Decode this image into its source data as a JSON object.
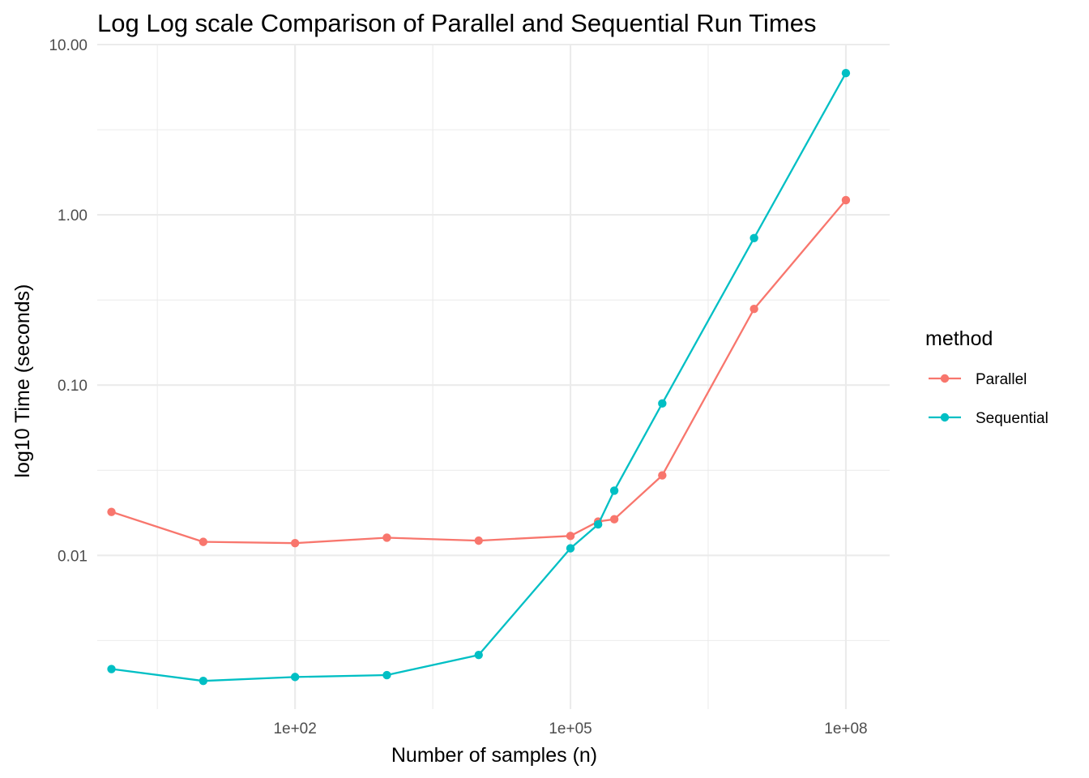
{
  "chart_data": {
    "type": "line",
    "title": "Log Log scale Comparison of Parallel and Sequential Run Times",
    "xlabel": "Number of samples (n)",
    "ylabel": "log10 Time (seconds)",
    "x_scale": "log10",
    "y_scale": "log10",
    "xlim": [
      0.7,
      300000000
    ],
    "ylim": [
      0.00125,
      10
    ],
    "x_ticks": [
      {
        "value": 100,
        "label": "1e+02"
      },
      {
        "value": 100000,
        "label": "1e+05"
      },
      {
        "value": 100000000,
        "label": "1e+08"
      }
    ],
    "x_minor_ticks": [
      3.16,
      3162,
      3162278
    ],
    "y_ticks": [
      {
        "value": 0.01,
        "label": "0.01"
      },
      {
        "value": 0.1,
        "label": "0.10"
      },
      {
        "value": 1,
        "label": "1.00"
      },
      {
        "value": 10,
        "label": "10.00"
      }
    ],
    "y_minor_ticks": [
      0.00316,
      0.0316,
      0.316,
      3.16
    ],
    "grid": true,
    "legend": {
      "title": "method",
      "placement": "right"
    },
    "series": [
      {
        "name": "Parallel",
        "color": "#F8766D",
        "points": [
          [
            1,
            0.018
          ],
          [
            10,
            0.012
          ],
          [
            100,
            0.0118
          ],
          [
            1000,
            0.0127
          ],
          [
            10000,
            0.0122
          ],
          [
            100000,
            0.013
          ],
          [
            200000,
            0.0158
          ],
          [
            300000,
            0.0163
          ],
          [
            1000000,
            0.0295
          ],
          [
            10000000,
            0.28
          ],
          [
            100000000,
            1.22
          ]
        ]
      },
      {
        "name": "Sequential",
        "color": "#00BFC4",
        "points": [
          [
            1,
            0.00215
          ],
          [
            10,
            0.00183
          ],
          [
            100,
            0.00193
          ],
          [
            1000,
            0.00198
          ],
          [
            10000,
            0.0026
          ],
          [
            100000,
            0.011
          ],
          [
            200000,
            0.0152
          ],
          [
            300000,
            0.024
          ],
          [
            1000000,
            0.078
          ],
          [
            10000000,
            0.73
          ],
          [
            100000000,
            6.8
          ]
        ]
      }
    ]
  }
}
